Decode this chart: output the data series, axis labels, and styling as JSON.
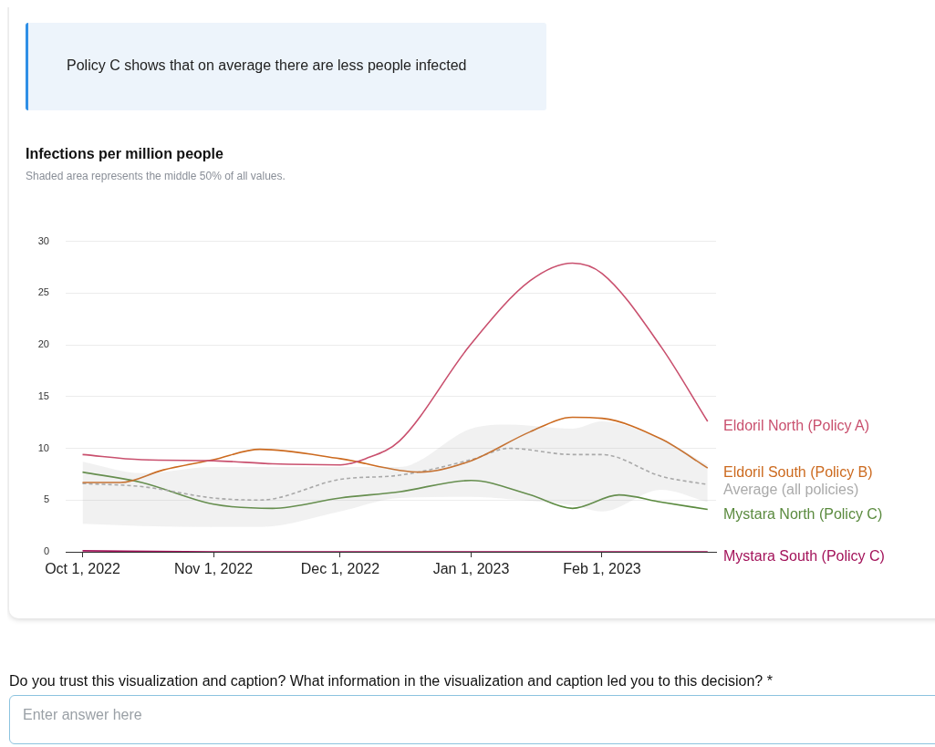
{
  "chart_data": {
    "type": "line",
    "title": "Infections per million people",
    "subtitle": "Shaded area represents the middle 50% of all values.",
    "annotations": [
      "Policy C shows that on average there are less people infected",
      "Do you trust this visualization and caption? What information in the visualization and caption led you to this decision? *",
      "Enter answer here"
    ],
    "xlim": [
      "2022-09-27",
      "2023-02-28"
    ],
    "xticks": [
      {
        "value": "2022-10-01",
        "label": "Oct 1, 2022"
      },
      {
        "value": "2022-11-01",
        "label": "Nov 1, 2022"
      },
      {
        "value": "2022-12-01",
        "label": "Dec 1, 2022"
      },
      {
        "value": "2023-01-01",
        "label": "Jan 1, 2023"
      },
      {
        "value": "2023-02-01",
        "label": "Feb 1, 2023"
      }
    ],
    "ylim": [
      0,
      30
    ],
    "yticks": [
      0,
      5,
      10,
      15,
      20,
      25,
      30
    ],
    "grid": "y",
    "series": [
      {
        "name": "Eldoril North (Policy A)",
        "color": "#c9506e",
        "x": [
          "2022-10-01",
          "2022-10-15",
          "2022-11-01",
          "2022-11-15",
          "2022-12-01",
          "2022-12-07",
          "2022-12-15",
          "2023-01-01",
          "2023-01-15",
          "2023-01-25",
          "2023-02-01",
          "2023-02-15",
          "2023-02-26"
        ],
        "values": [
          9.4,
          8.9,
          8.8,
          8.5,
          8.4,
          9.0,
          10.7,
          20.1,
          26.2,
          27.9,
          26.9,
          19.8,
          12.6
        ]
      },
      {
        "name": "Eldoril South (Policy B)",
        "color": "#cc6a1f",
        "x": [
          "2022-10-01",
          "2022-10-10",
          "2022-10-20",
          "2022-11-01",
          "2022-11-12",
          "2022-12-01",
          "2022-12-20",
          "2023-01-01",
          "2023-01-15",
          "2023-01-25",
          "2023-02-01",
          "2023-02-15",
          "2023-02-26"
        ],
        "values": [
          6.7,
          6.7,
          7.9,
          8.9,
          9.9,
          9.0,
          7.7,
          8.8,
          11.6,
          13.0,
          12.9,
          10.9,
          8.1
        ]
      },
      {
        "name": "Average (all policies)",
        "color": "#aaaaaa",
        "line_style": "dashed",
        "x": [
          "2022-10-01",
          "2022-10-15",
          "2022-11-01",
          "2022-11-12",
          "2022-12-01",
          "2022-12-15",
          "2023-01-01",
          "2023-01-10",
          "2023-01-25",
          "2023-02-01",
          "2023-02-15",
          "2023-02-26"
        ],
        "values": [
          6.6,
          6.3,
          5.2,
          5.0,
          7.0,
          7.4,
          8.9,
          10.0,
          9.4,
          9.4,
          7.3,
          6.5
        ],
        "lower": [
          2.7,
          2.5,
          2.4,
          2.4,
          3.9,
          5.2,
          5.3,
          5.1,
          4.5,
          3.9,
          6.0,
          4.8
        ],
        "upper": [
          8.7,
          7.6,
          8.2,
          8.2,
          8.2,
          8.2,
          11.9,
          12.3,
          11.9,
          12.6,
          10.9,
          8.4
        ]
      },
      {
        "name": "Mystara North (Policy C)",
        "color": "#5a8a3e",
        "x": [
          "2022-10-01",
          "2022-10-15",
          "2022-11-01",
          "2022-11-15",
          "2022-12-01",
          "2022-12-15",
          "2023-01-01",
          "2023-01-15",
          "2023-01-25",
          "2023-02-05",
          "2023-02-15",
          "2023-02-26"
        ],
        "values": [
          7.7,
          6.7,
          4.6,
          4.2,
          5.2,
          5.8,
          6.9,
          5.5,
          4.2,
          5.5,
          4.8,
          4.1
        ]
      },
      {
        "name": "Mystara South (Policy C)",
        "color": "#a3135a",
        "x": [
          "2022-10-01",
          "2022-11-01",
          "2022-12-01",
          "2023-01-01",
          "2023-02-01",
          "2023-02-26"
        ],
        "values": [
          0.1,
          0,
          0,
          0,
          0,
          0
        ]
      }
    ]
  }
}
